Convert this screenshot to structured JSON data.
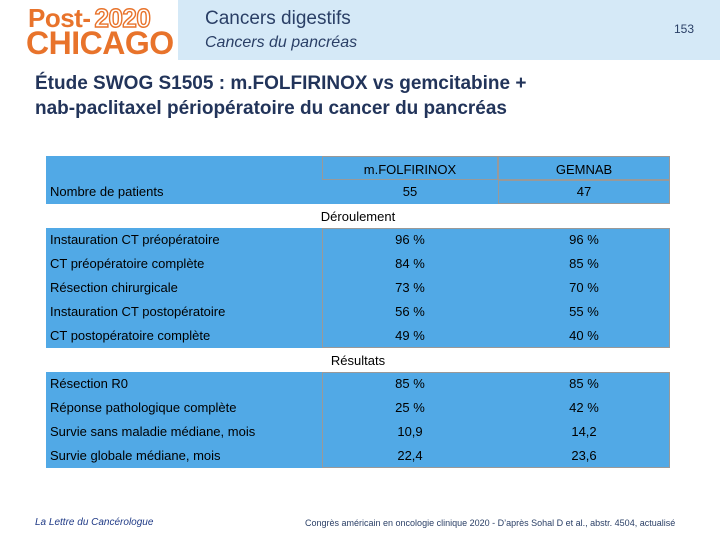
{
  "logo": {
    "line1": "Post-",
    "year": "2020",
    "line2": "CHICAGO"
  },
  "header": {
    "title": "Cancers digestifs",
    "subtitle": "Cancers du pancréas",
    "page_number": "153"
  },
  "slide_title_line1": "Étude SWOG S1505 : m.FOLFIRINOX vs gemcitabine +",
  "slide_title_line2": "nab-paclitaxel périopératoire du cancer du pancréas",
  "table": {
    "columns": [
      "m.FOLFIRINOX",
      "GEMNAB"
    ],
    "patients": {
      "label": "Nombre de patients",
      "values": [
        "55",
        "47"
      ]
    },
    "section1": "Déroulement",
    "rows1": [
      {
        "label": "Instauration CT préopératoire",
        "values": [
          "96 %",
          "96 %"
        ]
      },
      {
        "label": "CT préopératoire complète",
        "values": [
          "84 %",
          "85 %"
        ]
      },
      {
        "label": "Résection chirurgicale",
        "values": [
          "73 %",
          "70 %"
        ]
      },
      {
        "label": "Instauration CT postopératoire",
        "values": [
          "56 %",
          "55 %"
        ]
      },
      {
        "label": "CT postopératoire complète",
        "values": [
          "49 %",
          "40 %"
        ]
      }
    ],
    "section2": "Résultats",
    "rows2": [
      {
        "label": "Résection R0",
        "values": [
          "85 %",
          "85 %"
        ]
      },
      {
        "label": "Réponse pathologique complète",
        "values": [
          "25 %",
          "42 %"
        ]
      },
      {
        "label": "Survie sans maladie médiane, mois",
        "values": [
          "10,9",
          "14,2"
        ]
      },
      {
        "label": "Survie globale médiane, mois",
        "values": [
          "22,4",
          "23,6"
        ]
      }
    ]
  },
  "footer": {
    "left": "La Lettre du Cancérologue",
    "right": "Congrès américain en oncologie clinique 2020 - D’après Sohal D et al., abstr. 4504, actualisé"
  },
  "colors": {
    "band": "#51a9e6",
    "header_bg": "#d5e9f7",
    "logo": "#e8732b"
  }
}
